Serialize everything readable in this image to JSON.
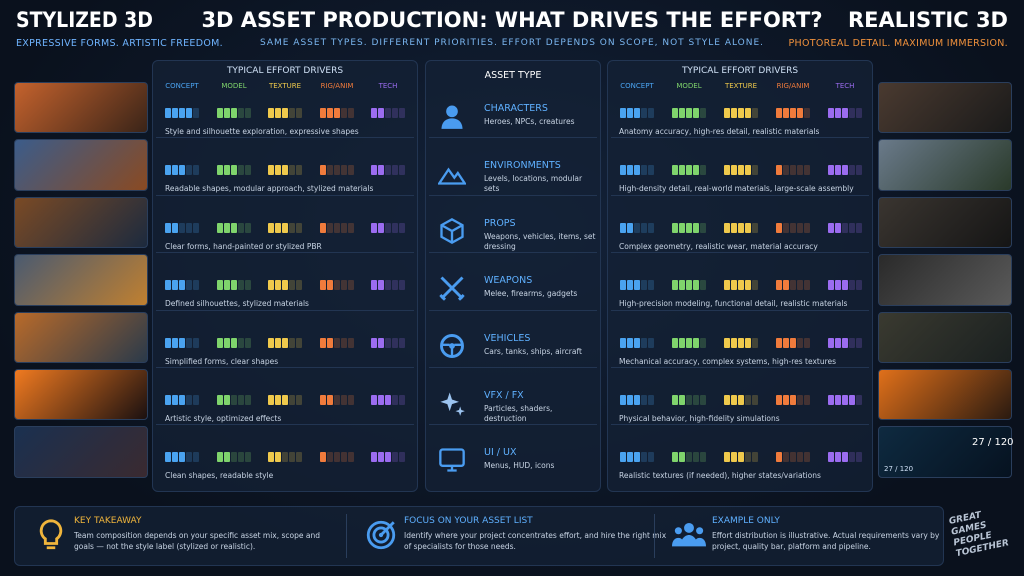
{
  "header": {
    "left_title": "STYLIZED 3D",
    "left_subtitle": "EXPRESSIVE FORMS. ARTISTIC FREEDOM.",
    "title": "3D ASSET PRODUCTION: WHAT DRIVES THE EFFORT?",
    "subtitle": "SAME ASSET TYPES. DIFFERENT PRIORITIES. EFFORT DEPENDS ON SCOPE, NOT STYLE ALONE.",
    "right_title": "REALISTIC 3D",
    "right_subtitle": "PHOTOREAL DETAIL. MAXIMUM IMMERSION."
  },
  "drivers": {
    "title": "TYPICAL EFFORT DRIVERS",
    "columns": [
      "CONCEPT",
      "MODEL",
      "TEXTURE",
      "RIG/ANIM",
      "TECH"
    ],
    "colors": [
      "#4aa3f0",
      "#7fd46c",
      "#efc94c",
      "#f07b3c",
      "#9b6cf0"
    ],
    "segments": 5
  },
  "asset_type_title": "ASSET TYPE",
  "rows": [
    {
      "name": "CHARACTERS",
      "desc": "Heroes, NPCs, creatures",
      "stylized_note": "Style and silhouette exploration, expressive shapes",
      "realistic_note": "Anatomy accuracy, high-res detail, realistic materials",
      "stylized": [
        4,
        3,
        3,
        3,
        2
      ],
      "realistic": [
        3,
        4,
        4,
        4,
        3
      ]
    },
    {
      "name": "ENVIRONMENTS",
      "desc": "Levels, locations, modular sets",
      "stylized_note": "Readable shapes, modular approach, stylized materials",
      "realistic_note": "High-density detail, real-world materials, large-scale assembly",
      "stylized": [
        3,
        3,
        3,
        1,
        2
      ],
      "realistic": [
        3,
        4,
        4,
        1,
        3
      ]
    },
    {
      "name": "PROPS",
      "desc": "Weapons, vehicles, items, set dressing",
      "stylized_note": "Clear forms, hand-painted or stylized PBR",
      "realistic_note": "Complex geometry, realistic wear, material accuracy",
      "stylized": [
        2,
        3,
        3,
        1,
        2
      ],
      "realistic": [
        2,
        4,
        4,
        1,
        2
      ]
    },
    {
      "name": "WEAPONS",
      "desc": "Melee, firearms, gadgets",
      "stylized_note": "Defined silhouettes, stylized materials",
      "realistic_note": "High-precision modeling, functional detail, realistic materials",
      "stylized": [
        3,
        3,
        3,
        2,
        2
      ],
      "realistic": [
        3,
        4,
        4,
        2,
        3
      ]
    },
    {
      "name": "VEHICLES",
      "desc": "Cars, tanks, ships, aircraft",
      "stylized_note": "Simplified forms, clear shapes",
      "realistic_note": "Mechanical accuracy, complex systems, high-res textures",
      "stylized": [
        3,
        3,
        3,
        2,
        2
      ],
      "realistic": [
        3,
        4,
        4,
        3,
        3
      ]
    },
    {
      "name": "VFX / FX",
      "desc": "Particles, shaders, destruction",
      "stylized_note": "Artistic style, optimized effects",
      "realistic_note": "Physical behavior, high-fidelity simulations",
      "stylized": [
        3,
        2,
        3,
        2,
        3
      ],
      "realistic": [
        3,
        2,
        3,
        3,
        4
      ]
    },
    {
      "name": "UI / UX",
      "desc": "Menus, HUD, icons",
      "stylized_note": "Clean shapes, readable style",
      "realistic_note": "Realistic textures (if needed), higher states/variations",
      "stylized": [
        3,
        2,
        2,
        1,
        3
      ],
      "realistic": [
        3,
        2,
        3,
        1,
        3
      ]
    }
  ],
  "hud": {
    "count": "27 / 120",
    "count_small": "27 / 120"
  },
  "footer": [
    {
      "title": "KEY TAKEAWAY",
      "text": "Team composition depends on your specific asset mix, scope and goals — not the style label (stylized or realistic)."
    },
    {
      "title": "FOCUS ON YOUR ASSET LIST",
      "text": "Identify where your project concentrates effort, and hire the right mix of specialists for those needs."
    },
    {
      "title": "EXAMPLE ONLY",
      "text": "Effort distribution is illustrative. Actual requirements vary by project, quality bar, platform and pipeline."
    }
  ],
  "brand": "GREAT GAMES PEOPLE TOGETHER"
}
